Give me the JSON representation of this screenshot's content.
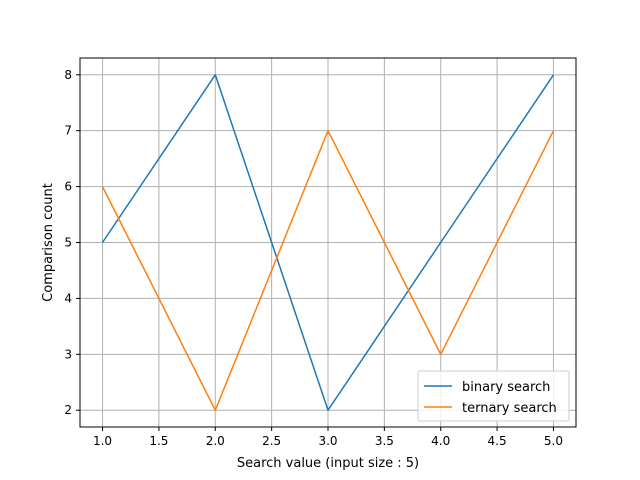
{
  "chart_data": {
    "type": "line",
    "title": "",
    "xlabel": "Search value (input size : 5)",
    "ylabel": "Comparison count",
    "x": [
      1.0,
      2.0,
      3.0,
      4.0,
      5.0
    ],
    "xlim": [
      0.8,
      5.2
    ],
    "ylim": [
      1.7,
      8.3
    ],
    "xticks": [
      "1.0",
      "1.5",
      "2.0",
      "2.5",
      "3.0",
      "3.5",
      "4.0",
      "4.5",
      "5.0"
    ],
    "yticks": [
      "2",
      "3",
      "4",
      "5",
      "6",
      "7",
      "8"
    ],
    "grid": true,
    "legend_position": "lower-right",
    "series": [
      {
        "name": "binary search",
        "values": [
          5,
          8,
          2,
          5,
          8
        ],
        "color": "#1f77b4"
      },
      {
        "name": "ternary search",
        "values": [
          6,
          2,
          7,
          3,
          7
        ],
        "color": "#ff7f0e"
      }
    ]
  }
}
